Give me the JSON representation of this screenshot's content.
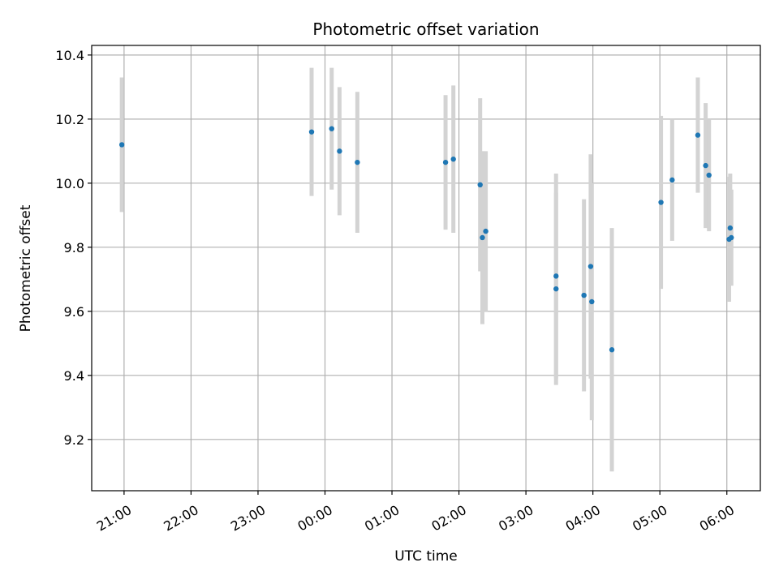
{
  "chart_data": {
    "type": "scatter",
    "title": "Photometric offset variation",
    "xlabel": "UTC time",
    "ylabel": "Photometric offset",
    "x_ticks": [
      "21:00",
      "22:00",
      "23:00",
      "00:00",
      "01:00",
      "02:00",
      "03:00",
      "04:00",
      "05:00",
      "06:00"
    ],
    "y_ticks": [
      "9.2",
      "9.4",
      "9.6",
      "9.8",
      "10.0",
      "10.2",
      "10.4"
    ],
    "xlim": [
      "20:31",
      "06:30"
    ],
    "ylim": [
      9.04,
      10.43
    ],
    "grid": true,
    "colors": {
      "point": "#1f77b4",
      "errorbar": "#d3d3d3",
      "grid": "#b0b0b0"
    },
    "points": [
      {
        "x": "20:58",
        "y": 10.12,
        "err": 0.21
      },
      {
        "x": "23:48",
        "y": 10.16,
        "err": 0.2
      },
      {
        "x": "00:06",
        "y": 10.17,
        "err": 0.19
      },
      {
        "x": "00:13",
        "y": 10.1,
        "err": 0.2
      },
      {
        "x": "00:29",
        "y": 10.065,
        "err": 0.22
      },
      {
        "x": "01:48",
        "y": 10.065,
        "err": 0.21
      },
      {
        "x": "01:55",
        "y": 10.075,
        "err": 0.23
      },
      {
        "x": "02:19",
        "y": 9.995,
        "err": 0.27
      },
      {
        "x": "02:21",
        "y": 9.83,
        "err": 0.27
      },
      {
        "x": "02:24",
        "y": 9.85,
        "err": 0.25
      },
      {
        "x": "03:27",
        "y": 9.71,
        "err": 0.32
      },
      {
        "x": "03:27",
        "y": 9.67,
        "err": 0.3
      },
      {
        "x": "03:52",
        "y": 9.65,
        "err": 0.3
      },
      {
        "x": "03:58",
        "y": 9.74,
        "err": 0.35
      },
      {
        "x": "03:59",
        "y": 9.63,
        "err": 0.37
      },
      {
        "x": "04:17",
        "y": 9.48,
        "err": 0.38
      },
      {
        "x": "05:01",
        "y": 9.94,
        "err": 0.27
      },
      {
        "x": "05:11",
        "y": 10.01,
        "err": 0.19
      },
      {
        "x": "05:34",
        "y": 10.15,
        "err": 0.18
      },
      {
        "x": "05:41",
        "y": 10.055,
        "err": 0.195
      },
      {
        "x": "05:44",
        "y": 10.025,
        "err": 0.175
      },
      {
        "x": "06:02",
        "y": 9.825,
        "err": 0.195
      },
      {
        "x": "06:03",
        "y": 9.86,
        "err": 0.17
      },
      {
        "x": "06:04",
        "y": 9.83,
        "err": 0.15
      }
    ]
  }
}
